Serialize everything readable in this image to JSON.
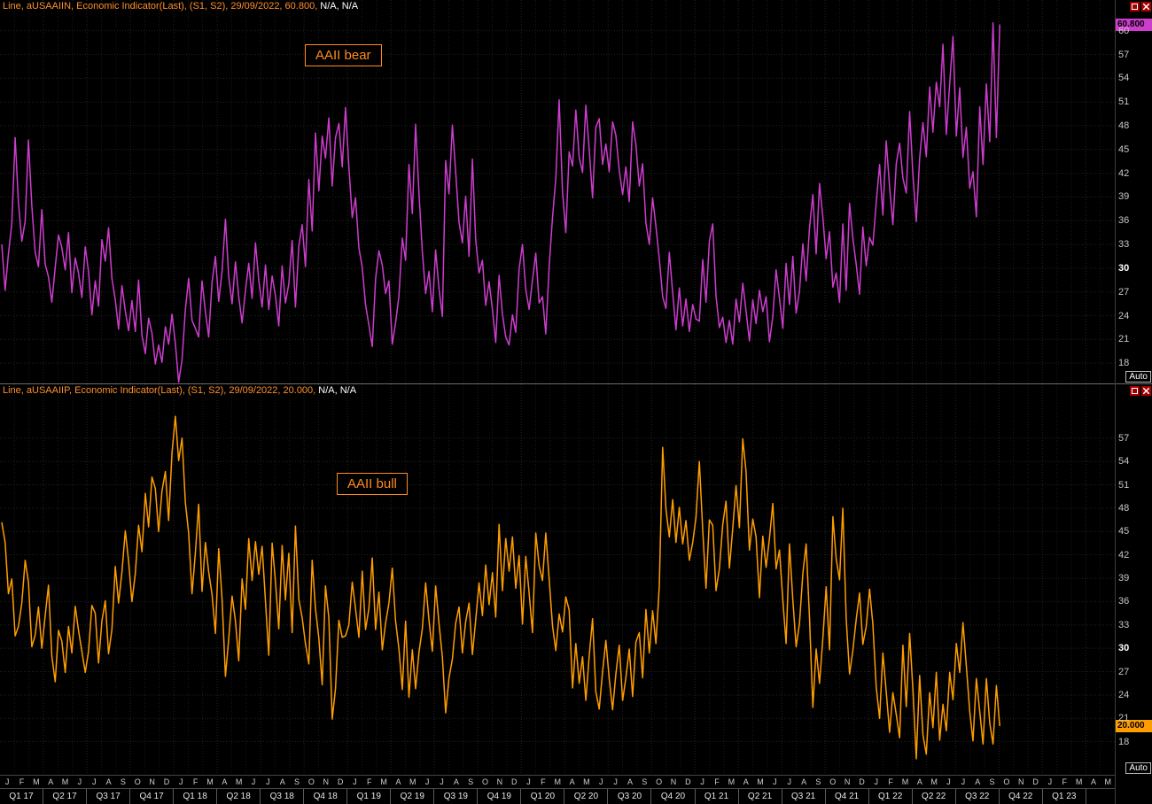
{
  "panels": [
    {
      "legend_main": "Line, aUSAAIIN, Economic Indicator(Last), (S1, S2), 29/09/2022, 60.800,",
      "legend_na": " N/A, N/A",
      "annotation": "AAII bear",
      "badge": "60.800",
      "auto_label": "Auto"
    },
    {
      "legend_main": "Line, aUSAAIIP, Economic Indicator(Last), (S1, S2), 29/09/2022, 20.000,",
      "legend_na": " N/A, N/A",
      "annotation": "AAII bull",
      "badge": "20.000",
      "auto_label": "Auto"
    }
  ],
  "yaxis": {
    "emphasized": 30
  },
  "xaxis": {
    "month_letters": "JFMAMJJASONDJFMAMJJASONDJFMAMJJASONDJFMAMJJASONDJFMAMJJASONDJFMAMJJASONDJFMAM",
    "quarters": [
      "Q1 17",
      "Q2 17",
      "Q3 17",
      "Q4 17",
      "Q1 18",
      "Q2 18",
      "Q3 18",
      "Q4 18",
      "Q1 19",
      "Q2 19",
      "Q3 19",
      "Q4 19",
      "Q1 20",
      "Q2 20",
      "Q3 20",
      "Q4 20",
      "Q1 21",
      "Q2 21",
      "Q3 21",
      "Q4 21",
      "Q1 22",
      "Q2 22",
      "Q3 22",
      "Q4 22",
      "Q1 23"
    ],
    "total_months": 77,
    "total_weeks": 334
  },
  "colors": {
    "background": "#000000",
    "bear_line": "#cc3dcc",
    "bull_line": "#ff9d00",
    "legend": "#ff8f2a",
    "annotation": "#ff8c1a",
    "grid": "#242424",
    "axis_text": "#c8c8c8",
    "axis_text_emphasis": "#ffffff",
    "badge_text": "#000000",
    "icon_bg": "#a40000"
  },
  "chart_data": [
    {
      "type": "line",
      "title": "AAII bear",
      "series_id": "aUSAAIIN",
      "line_name": "bear-line",
      "color": "#cc3dcc",
      "frequency": "weekly",
      "x_axis_start": "Jan 2017",
      "x_axis_end": "May 2023",
      "last_date": "29/09/2022",
      "last_value": 60.8,
      "ylim": [
        16,
        63
      ],
      "yticks": [
        60,
        57,
        54,
        51,
        48,
        45,
        42,
        39,
        36,
        33,
        30,
        27,
        24,
        21,
        18
      ],
      "grid": true,
      "legend_position": "top-left",
      "values": [
        33.0,
        27.2,
        31.8,
        35.6,
        46.5,
        38.3,
        33.4,
        35.9,
        46.2,
        37.9,
        32.0,
        30.2,
        37.4,
        30.5,
        28.9,
        25.7,
        30.1,
        34.2,
        32.6,
        29.8,
        34.5,
        26.9,
        31.3,
        29.4,
        26.3,
        32.7,
        29.6,
        24.1,
        28.4,
        25.2,
        33.6,
        30.9,
        35.1,
        28.7,
        26.0,
        22.3,
        27.8,
        24.6,
        22.1,
        25.9,
        22.0,
        28.5,
        21.5,
        19.2,
        23.7,
        21.8,
        17.9,
        20.3,
        18.1,
        22.6,
        20.4,
        24.2,
        20.5,
        15.6,
        18.4,
        24.8,
        28.7,
        23.4,
        22.4,
        21.3,
        28.4,
        24.5,
        21.3,
        28.2,
        31.5,
        25.8,
        29.6,
        36.2,
        28.9,
        25.5,
        30.8,
        26.4,
        23.1,
        27.2,
        30.6,
        26.2,
        33.2,
        28.5,
        25.1,
        30.4,
        24.8,
        29.0,
        26.5,
        22.7,
        30.3,
        25.6,
        28.0,
        33.5,
        25.1,
        32.8,
        35.5,
        30.2,
        41.2,
        34.7,
        47.1,
        39.8,
        46.7,
        43.9,
        49.0,
        40.4,
        46.5,
        48.3,
        42.8,
        50.3,
        42.8,
        36.4,
        38.9,
        32.6,
        30.1,
        25.4,
        22.8,
        20.1,
        28.6,
        32.2,
        30.4,
        26.8,
        28.4,
        20.4,
        23.1,
        26.5,
        33.8,
        31.0,
        43.1,
        36.9,
        48.2,
        39.5,
        32.1,
        26.8,
        29.6,
        24.5,
        32.3,
        27.4,
        23.9,
        43.6,
        39.4,
        48.1,
        42.2,
        35.8,
        33.2,
        39.1,
        31.5,
        43.8,
        33.6,
        29.4,
        31.0,
        25.3,
        28.3,
        24.8,
        20.6,
        29.1,
        24.2,
        21.3,
        20.3,
        24.1,
        21.9,
        29.9,
        33.0,
        27.3,
        24.8,
        28.5,
        31.9,
        25.6,
        26.4,
        21.7,
        30.2,
        36.4,
        41.3,
        51.3,
        39.6,
        34.5,
        44.7,
        42.9,
        50.0,
        44.0,
        42.1,
        50.6,
        45.0,
        38.9,
        47.8,
        48.9,
        43.1,
        45.7,
        42.2,
        48.5,
        46.8,
        42.4,
        39.3,
        42.8,
        38.4,
        48.5,
        45.6,
        40.4,
        43.2,
        35.7,
        33.0,
        38.9,
        35.3,
        31.2,
        26.4,
        24.9,
        32.0,
        26.9,
        22.2,
        27.5,
        22.7,
        26.1,
        22.0,
        25.4,
        23.6,
        23.3,
        31.1,
        25.7,
        33.4,
        35.6,
        26.5,
        22.5,
        23.8,
        20.6,
        23.4,
        20.4,
        26.1,
        23.2,
        28.1,
        24.6,
        20.8,
        26.0,
        23.0,
        27.2,
        24.5,
        26.4,
        20.7,
        23.9,
        29.8,
        26.2,
        22.4,
        30.6,
        25.4,
        31.5,
        24.3,
        27.1,
        33.1,
        28.4,
        35.1,
        39.3,
        31.8,
        40.7,
        36.4,
        31.2,
        34.6,
        27.6,
        29.4,
        25.7,
        35.6,
        27.2,
        38.2,
        33.8,
        30.5,
        26.7,
        35.2,
        30.3,
        33.9,
        32.9,
        38.3,
        43.1,
        36.7,
        46.1,
        40.2,
        35.5,
        43.2,
        45.8,
        41.4,
        39.5,
        49.8,
        41.8,
        35.9,
        43.9,
        48.4,
        44.1,
        52.9,
        47.2,
        53.5,
        50.4,
        58.3,
        46.9,
        53.3,
        59.3,
        46.7,
        52.8,
        44.0,
        47.8,
        40.1,
        42.2,
        36.5,
        50.4,
        43.1,
        53.3,
        46.0,
        61.0,
        46.5,
        60.8
      ]
    },
    {
      "type": "line",
      "title": "AAII bull",
      "series_id": "aUSAAIIP",
      "line_name": "bull-line",
      "color": "#ff9d00",
      "frequency": "weekly",
      "x_axis_start": "Jan 2017",
      "x_axis_end": "May 2023",
      "last_date": "29/09/2022",
      "last_value": 20.0,
      "ylim": [
        15,
        63
      ],
      "yticks": [
        57,
        54,
        51,
        48,
        45,
        42,
        39,
        36,
        33,
        30,
        27,
        24,
        21,
        18
      ],
      "grid": true,
      "legend_position": "top-left",
      "values": [
        46.2,
        43.6,
        37.0,
        38.9,
        31.6,
        32.8,
        35.8,
        41.3,
        38.5,
        30.2,
        31.7,
        35.3,
        30.0,
        34.2,
        38.1,
        29.0,
        25.7,
        32.3,
        30.9,
        26.9,
        32.8,
        29.4,
        35.4,
        32.3,
        29.6,
        26.9,
        29.6,
        35.5,
        34.5,
        28.1,
        33.5,
        36.1,
        29.3,
        32.4,
        40.5,
        35.8,
        39.8,
        45.1,
        41.2,
        36.0,
        39.6,
        45.8,
        42.4,
        49.9,
        45.6,
        52.0,
        50.5,
        45.0,
        50.2,
        52.7,
        46.4,
        55.1,
        59.8,
        54.1,
        57.0,
        48.7,
        44.8,
        37.0,
        42.3,
        48.5,
        37.3,
        43.6,
        39.8,
        36.9,
        31.9,
        42.8,
        36.3,
        26.4,
        31.2,
        36.7,
        33.5,
        28.4,
        38.9,
        35.0,
        44.1,
        38.7,
        43.7,
        39.5,
        43.1,
        36.0,
        29.1,
        43.5,
        38.5,
        32.5,
        43.2,
        36.2,
        42.2,
        32.0,
        45.7,
        36.3,
        33.9,
        30.6,
        28.0,
        41.3,
        35.1,
        31.3,
        25.3,
        38.0,
        33.9,
        20.9,
        24.8,
        33.6,
        31.4,
        31.6,
        33.0,
        38.5,
        35.1,
        31.4,
        39.9,
        32.4,
        35.1,
        41.6,
        32.4,
        37.2,
        29.8,
        33.2,
        35.8,
        40.3,
        33.5,
        29.9,
        24.7,
        33.5,
        23.7,
        29.8,
        24.8,
        29.5,
        32.5,
        38.4,
        33.6,
        29.6,
        38.0,
        33.2,
        28.9,
        21.7,
        26.2,
        28.6,
        33.2,
        35.3,
        29.4,
        33.4,
        35.8,
        29.2,
        33.6,
        38.4,
        34.2,
        40.7,
        35.6,
        39.7,
        34.0,
        45.9,
        37.4,
        44.1,
        39.9,
        44.3,
        37.7,
        41.9,
        33.1,
        41.8,
        37.1,
        32.0,
        44.8,
        40.6,
        38.7,
        44.8,
        38.9,
        32.9,
        29.7,
        34.4,
        32.1,
        36.6,
        34.9,
        24.9,
        30.6,
        25.5,
        28.9,
        23.3,
        29.0,
        33.8,
        24.4,
        22.2,
        27.0,
        31.0,
        26.1,
        22.1,
        26.7,
        30.4,
        23.3,
        26.2,
        29.9,
        23.8,
        30.8,
        32.0,
        26.2,
        35.0,
        29.4,
        34.8,
        30.6,
        38.0,
        55.8,
        47.9,
        44.3,
        49.1,
        43.6,
        48.1,
        43.4,
        46.4,
        41.3,
        43.6,
        46.8,
        54.0,
        45.2,
        37.7,
        46.5,
        45.8,
        37.4,
        40.2,
        45.9,
        48.9,
        40.3,
        45.4,
        50.9,
        45.5,
        56.9,
        52.7,
        42.6,
        46.6,
        44.3,
        36.5,
        44.4,
        40.4,
        44.1,
        48.6,
        40.2,
        42.6,
        36.2,
        30.6,
        43.4,
        36.2,
        30.2,
        33.2,
        39.6,
        43.4,
        33.9,
        22.4,
        29.9,
        25.5,
        31.3,
        37.9,
        29.8,
        46.9,
        41.5,
        38.8,
        48.0,
        33.8,
        26.7,
        29.7,
        33.7,
        37.1,
        30.5,
        32.8,
        37.6,
        33.1,
        25.0,
        21.0,
        29.4,
        24.4,
        19.2,
        24.3,
        21.5,
        18.5,
        30.4,
        22.5,
        31.9,
        24.7,
        15.8,
        26.5,
        18.9,
        16.4,
        24.3,
        19.8,
        26.9,
        18.2,
        22.8,
        19.4,
        26.9,
        23.4,
        30.6,
        26.9,
        33.3,
        27.7,
        21.9,
        18.1,
        26.1,
        21.9,
        17.7,
        26.1,
        20.4,
        17.7,
        25.2,
        20.0
      ]
    }
  ]
}
